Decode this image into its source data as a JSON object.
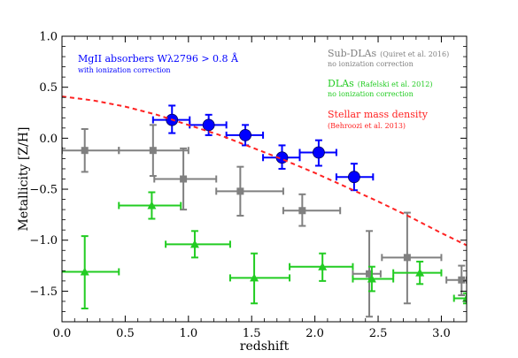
{
  "chart_data": {
    "type": "scatter",
    "xlabel": "redshift",
    "ylabel": "Metallicity [Z/H]",
    "xlim": [
      0.0,
      3.2
    ],
    "ylim": [
      -1.8,
      1.0
    ],
    "x_ticks": [
      0.0,
      0.5,
      1.0,
      1.5,
      2.0,
      2.5,
      3.0
    ],
    "x_tick_labels": [
      "0.0",
      "0.5",
      "1.0",
      "1.5",
      "2.0",
      "2.5",
      "3.0"
    ],
    "y_ticks": [
      -1.5,
      -1.0,
      -0.5,
      0.0,
      0.5,
      1.0
    ],
    "y_tick_labels": [
      "−1.5",
      "−1.0",
      "−0.5",
      "0.0",
      "0.5",
      "1.0"
    ],
    "grid": false,
    "legend": [
      {
        "label": "MgII absorbers Wλ2796 > 0.8 Å",
        "note": "with ionization correction",
        "color": "#0000ff",
        "placement": "top-left"
      },
      {
        "label": "Sub-DLAs",
        "note_inline": "(Quiret et al. 2016)",
        "note": "no ionization correction",
        "color": "#808080",
        "placement": "top-right"
      },
      {
        "label": "DLAs",
        "note_inline": "(Rafelski et al. 2012)",
        "note": "no ionization correction",
        "color": "#22cc22",
        "placement": "top-right"
      },
      {
        "label": "Stellar mass density",
        "note": "(Behroozi et al. 2013)",
        "color": "#ff2222",
        "placement": "top-right"
      }
    ],
    "series": [
      {
        "name": "MgII absorbers",
        "marker": "circle",
        "color": "#0000ff",
        "points": [
          {
            "x": 0.87,
            "y": 0.18,
            "xlo": 0.72,
            "xhi": 1.01,
            "ylo": 0.05,
            "yhi": 0.32
          },
          {
            "x": 1.16,
            "y": 0.13,
            "xlo": 1.01,
            "xhi": 1.3,
            "ylo": 0.03,
            "yhi": 0.23
          },
          {
            "x": 1.45,
            "y": 0.03,
            "xlo": 1.3,
            "xhi": 1.59,
            "ylo": -0.07,
            "yhi": 0.13
          },
          {
            "x": 1.74,
            "y": -0.19,
            "xlo": 1.59,
            "xhi": 1.88,
            "ylo": -0.3,
            "yhi": -0.07
          },
          {
            "x": 2.03,
            "y": -0.14,
            "xlo": 1.88,
            "xhi": 2.17,
            "ylo": -0.27,
            "yhi": -0.02
          },
          {
            "x": 2.31,
            "y": -0.38,
            "xlo": 2.17,
            "xhi": 2.46,
            "ylo": -0.51,
            "yhi": -0.25
          }
        ]
      },
      {
        "name": "Sub-DLAs",
        "marker": "square",
        "color": "#808080",
        "points": [
          {
            "x": 0.18,
            "y": -0.12,
            "xlo": 0.0,
            "xhi": 0.45,
            "ylo": -0.33,
            "yhi": 0.09
          },
          {
            "x": 0.72,
            "y": -0.12,
            "xlo": 0.45,
            "xhi": 1.0,
            "ylo": -0.37,
            "yhi": 0.13
          },
          {
            "x": 0.96,
            "y": -0.4,
            "xlo": 0.73,
            "xhi": 1.22,
            "ylo": -0.7,
            "yhi": -0.1
          },
          {
            "x": 1.41,
            "y": -0.52,
            "xlo": 1.22,
            "xhi": 1.75,
            "ylo": -0.76,
            "yhi": -0.28
          },
          {
            "x": 1.9,
            "y": -0.71,
            "xlo": 1.75,
            "xhi": 2.2,
            "ylo": -0.86,
            "yhi": -0.55
          },
          {
            "x": 2.43,
            "y": -1.33,
            "xlo": 2.3,
            "xhi": 2.52,
            "ylo": -1.75,
            "yhi": -0.91
          },
          {
            "x": 2.73,
            "y": -1.17,
            "xlo": 2.53,
            "xhi": 3.0,
            "ylo": -1.62,
            "yhi": -0.73
          },
          {
            "x": 3.16,
            "y": -1.39,
            "xlo": 3.04,
            "xhi": 3.2,
            "ylo": -1.54,
            "yhi": -1.25
          }
        ]
      },
      {
        "name": "DLAs",
        "marker": "triangle",
        "color": "#22cc22",
        "points": [
          {
            "x": 0.18,
            "y": -1.31,
            "xlo": -0.02,
            "xhi": 0.45,
            "ylo": -1.67,
            "yhi": -0.96
          },
          {
            "x": 0.71,
            "y": -0.66,
            "xlo": 0.45,
            "xhi": 0.94,
            "ylo": -0.79,
            "yhi": -0.53
          },
          {
            "x": 1.05,
            "y": -1.04,
            "xlo": 0.82,
            "xhi": 1.33,
            "ylo": -1.17,
            "yhi": -0.91
          },
          {
            "x": 1.52,
            "y": -1.37,
            "xlo": 1.33,
            "xhi": 1.8,
            "ylo": -1.62,
            "yhi": -1.13
          },
          {
            "x": 2.06,
            "y": -1.26,
            "xlo": 1.8,
            "xhi": 2.3,
            "ylo": -1.4,
            "yhi": -1.13
          },
          {
            "x": 2.45,
            "y": -1.38,
            "xlo": 2.3,
            "xhi": 2.62,
            "ylo": -1.5,
            "yhi": -1.26
          },
          {
            "x": 2.83,
            "y": -1.32,
            "xlo": 2.62,
            "xhi": 3.0,
            "ylo": -1.43,
            "yhi": -1.21
          },
          {
            "x": 3.2,
            "y": -1.57,
            "xlo": 3.1,
            "xhi": 3.3,
            "ylo": -1.62,
            "yhi": -1.52
          }
        ]
      },
      {
        "name": "Stellar mass density",
        "type": "line",
        "style": "dashed",
        "color": "#ff2222",
        "x": [
          0.0,
          0.25,
          0.5,
          0.75,
          1.0,
          1.25,
          1.5,
          1.75,
          2.0,
          2.25,
          2.5,
          2.75,
          3.0,
          3.2
        ],
        "y": [
          0.41,
          0.37,
          0.31,
          0.23,
          0.13,
          0.03,
          -0.09,
          -0.21,
          -0.34,
          -0.48,
          -0.62,
          -0.77,
          -0.93,
          -1.05
        ]
      }
    ]
  }
}
